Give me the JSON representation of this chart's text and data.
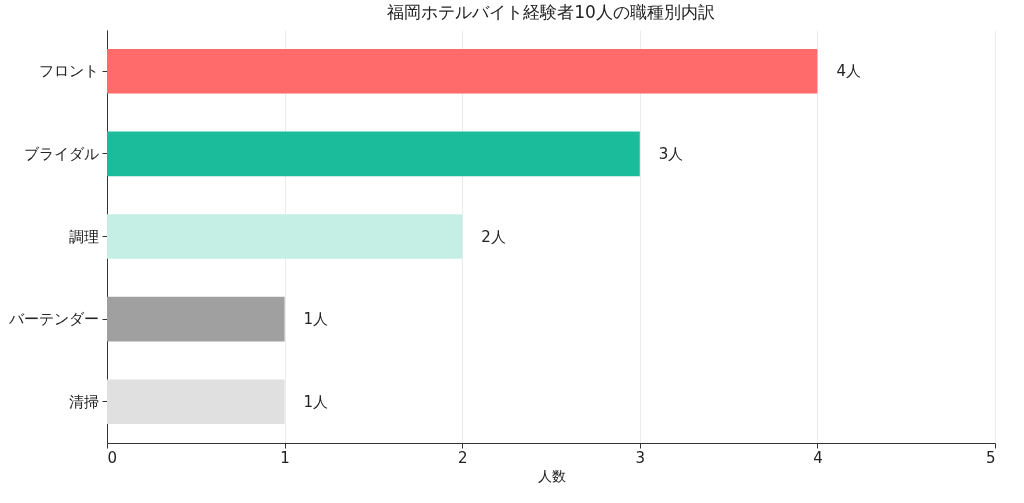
{
  "chart_data": {
    "type": "bar",
    "orientation": "horizontal",
    "title": "福岡ホテルバイト経験者10人の職種別内訳",
    "xlabel": "人数",
    "categories": [
      "フロント",
      "ブライダル",
      "調理",
      "バーテンダー",
      "清掃"
    ],
    "values": [
      4,
      3,
      2,
      1,
      1
    ],
    "colors": [
      "#ff6b6b",
      "#1abc9c",
      "#c5efe5",
      "#a0a0a0",
      "#e0e0e0"
    ],
    "value_labels": [
      "4人",
      "3人",
      "2人",
      "1人",
      "1人"
    ],
    "xlim": [
      0,
      5
    ],
    "xticks": [
      0,
      1,
      2,
      3,
      4,
      5
    ],
    "grid": "x",
    "legend": false
  }
}
